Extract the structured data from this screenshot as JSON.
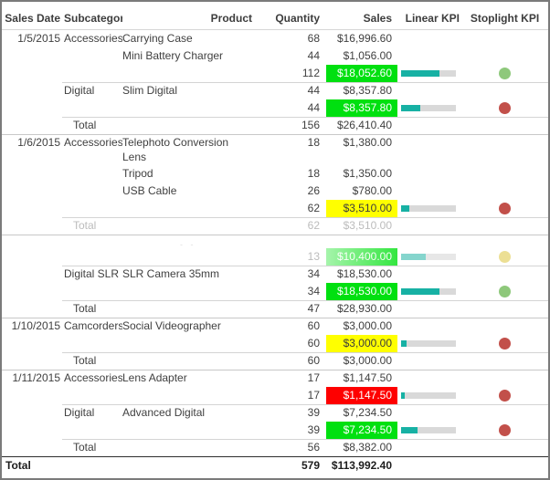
{
  "colors": {
    "green": "#00e010",
    "yellow": "#ffff00",
    "red": "#fe0000",
    "teal": "#17b1a4",
    "dotGreen": "#8ec87b",
    "dotRed": "#c2504a",
    "dotYellow": "#e9d981"
  },
  "table": {
    "headers": [
      "Sales Date",
      "Subcategory",
      "Product",
      "Quantity",
      "Sales",
      "Linear KPI",
      "Stoplight KPI"
    ],
    "rows": [
      {
        "kind": "detail",
        "line": "none",
        "date": "1/5/2015",
        "subcategory": "Accessories",
        "product": "Carrying Case",
        "quantity": "68",
        "sales": "$16,996.60"
      },
      {
        "kind": "detail",
        "line": "none",
        "product": "Mini Battery Charger",
        "quantity": "44",
        "sales": "$1,056.00"
      },
      {
        "kind": "subtotal",
        "line": "none",
        "quantity": "112",
        "sales": "$18,052.60",
        "sales_bg": "green",
        "bar": 70,
        "dot": "green"
      },
      {
        "kind": "detail",
        "line": "sub",
        "subcategory": "Digital",
        "product": "Slim Digital",
        "quantity": "44",
        "sales": "$8,357.80"
      },
      {
        "kind": "subtotal",
        "line": "none",
        "quantity": "44",
        "sales": "$8,357.80",
        "sales_bg": "green",
        "bar": 35,
        "dot": "red"
      },
      {
        "kind": "total",
        "line": "sub",
        "subcategory": "Total",
        "quantity": "156",
        "sales": "$26,410.40"
      },
      {
        "kind": "detail",
        "line": "full",
        "two_line": true,
        "date": "1/6/2015",
        "subcategory": "Accessories",
        "product": "Telephoto Conversion\nLens",
        "quantity": "18",
        "sales": "$1,380.00"
      },
      {
        "kind": "detail",
        "line": "none",
        "product": "Tripod",
        "quantity": "18",
        "sales": "$1,350.00"
      },
      {
        "kind": "detail",
        "line": "none",
        "product": "USB Cable",
        "quantity": "26",
        "sales": "$780.00"
      },
      {
        "kind": "subtotal",
        "line": "none",
        "quantity": "62",
        "sales": "$3,510.00",
        "sales_bg": "yellow",
        "bar": 15,
        "dot": "red"
      },
      {
        "kind": "total",
        "line": "sub",
        "gray": true,
        "subcategory": "Total",
        "quantity": "62",
        "sales": "$3,510.00"
      },
      {
        "kind": "gap",
        "line": "full",
        "remnant": "- -"
      },
      {
        "kind": "subtotal",
        "line": "none",
        "faded": true,
        "quantity": "13",
        "sales": "$10,400.00",
        "sales_bg": "faded-green",
        "bar": 45,
        "dot": "faded-yellow"
      },
      {
        "kind": "detail",
        "line": "sub",
        "subcategory": "Digital SLR",
        "product": "SLR Camera 35mm",
        "quantity": "34",
        "sales": "$18,530.00"
      },
      {
        "kind": "subtotal",
        "line": "none",
        "quantity": "34",
        "sales": "$18,530.00",
        "sales_bg": "green",
        "bar": 70,
        "dot": "green"
      },
      {
        "kind": "total",
        "line": "sub",
        "subcategory": "Total",
        "quantity": "47",
        "sales": "$28,930.00"
      },
      {
        "kind": "detail",
        "line": "full",
        "date": "1/10/2015",
        "subcategory": "Camcorders",
        "product": "Social Videographer",
        "quantity": "60",
        "sales": "$3,000.00"
      },
      {
        "kind": "subtotal",
        "line": "none",
        "quantity": "60",
        "sales": "$3,000.00",
        "sales_bg": "yellow",
        "bar": 10,
        "dot": "red"
      },
      {
        "kind": "total",
        "line": "sub",
        "subcategory": "Total",
        "quantity": "60",
        "sales": "$3,000.00"
      },
      {
        "kind": "detail",
        "line": "full",
        "date": "1/11/2015",
        "subcategory": "Accessories",
        "product": "Lens Adapter",
        "quantity": "17",
        "sales": "$1,147.50"
      },
      {
        "kind": "subtotal",
        "line": "none",
        "quantity": "17",
        "sales": "$1,147.50",
        "sales_bg": "red",
        "bar": 6,
        "dot": "red"
      },
      {
        "kind": "detail",
        "line": "sub",
        "subcategory": "Digital",
        "product": "Advanced Digital",
        "quantity": "39",
        "sales": "$7,234.50"
      },
      {
        "kind": "subtotal",
        "line": "none",
        "quantity": "39",
        "sales": "$7,234.50",
        "sales_bg": "green",
        "bar": 30,
        "dot": "red"
      },
      {
        "kind": "total",
        "line": "sub",
        "subcategory": "Total",
        "quantity": "56",
        "sales": "$8,382.00"
      },
      {
        "kind": "grand",
        "line": "dark",
        "date": "Total",
        "quantity": "579",
        "sales": "$113,992.40"
      }
    ]
  }
}
